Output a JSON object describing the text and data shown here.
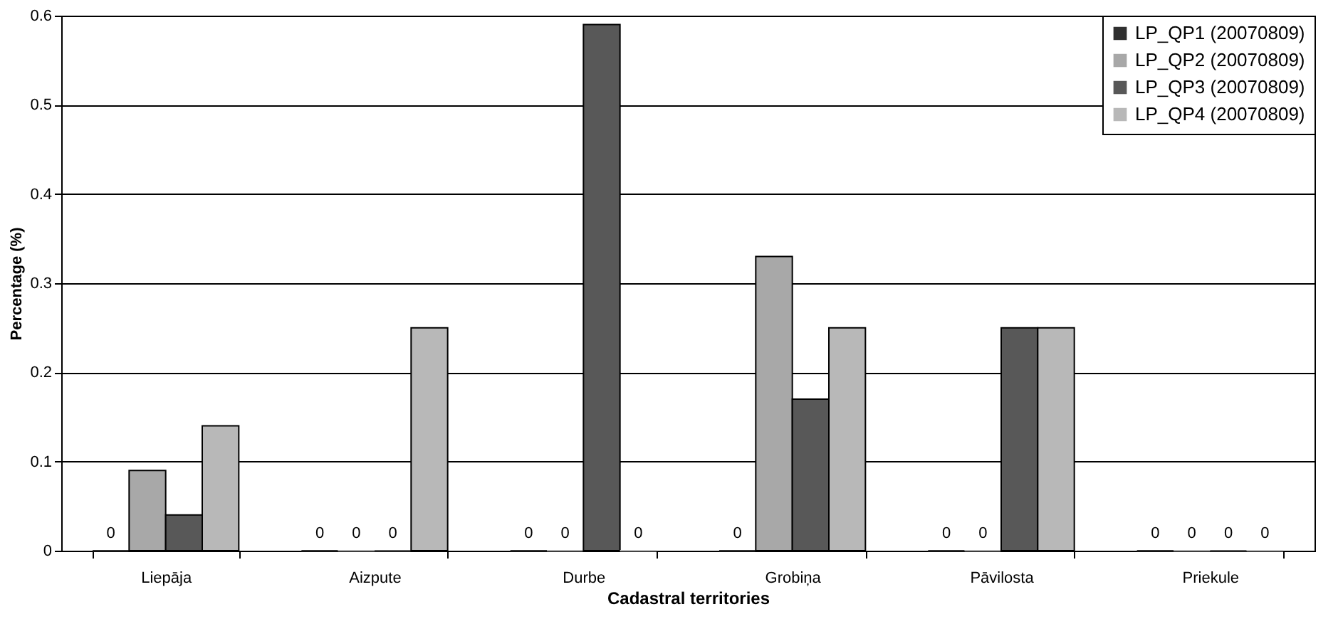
{
  "chart_data": {
    "type": "bar",
    "xlabel": "Cadastral territories",
    "ylabel": "Percentage (%)",
    "categories": [
      "Liepāja",
      "Aizpute",
      "Durbe",
      "Grobiņa",
      "Pāvilosta",
      "Priekule"
    ],
    "series": [
      {
        "name": "LP_QP1 (20070809)",
        "color": "#303030",
        "values": [
          0,
          0,
          0,
          0,
          0,
          0
        ],
        "value_labels": [
          "0",
          "0",
          "0",
          "0",
          "0",
          "0"
        ]
      },
      {
        "name": "LP_QP2 (20070809)",
        "color": "#a8a8a8",
        "values": [
          0.09,
          0,
          0,
          0.33,
          0,
          0
        ],
        "value_labels": [
          null,
          "0",
          "0",
          null,
          "0",
          "0"
        ]
      },
      {
        "name": "LP_QP3 (20070809)",
        "color": "#585858",
        "values": [
          0.04,
          0,
          0.59,
          0.17,
          0.25,
          0
        ],
        "value_labels": [
          null,
          "0",
          null,
          null,
          null,
          "0"
        ]
      },
      {
        "name": "LP_QP4 (20070809)",
        "color": "#b8b8b8",
        "values": [
          0.14,
          0.25,
          0,
          0.25,
          0.25,
          0
        ],
        "value_labels": [
          null,
          null,
          "0",
          null,
          null,
          "0"
        ]
      }
    ],
    "ylim": [
      0,
      0.6
    ],
    "yticks": [
      0,
      0.1,
      0.2,
      0.3,
      0.4,
      0.5,
      0.6
    ],
    "grid": "y",
    "legend": "top right"
  }
}
